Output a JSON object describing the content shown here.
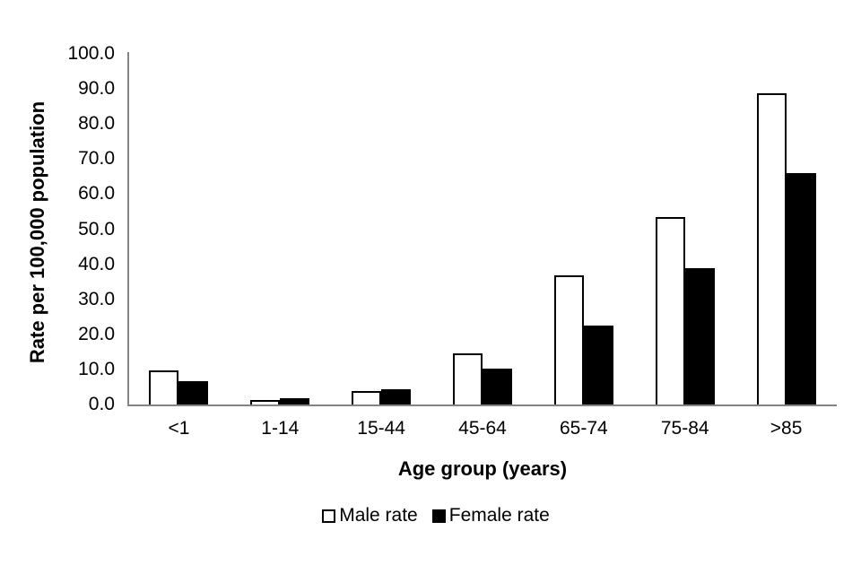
{
  "chart_data": {
    "type": "bar",
    "categories": [
      "<1",
      "1-14",
      "15-44",
      "45-64",
      "65-74",
      "75-84",
      ">85"
    ],
    "series": [
      {
        "name": "Male rate",
        "values": [
          9.8,
          1.4,
          3.9,
          14.7,
          36.9,
          53.4,
          88.7
        ],
        "fill": "#ffffff",
        "stroke": "#000000"
      },
      {
        "name": "Female rate",
        "values": [
          6.6,
          1.7,
          4.4,
          10.3,
          22.4,
          38.9,
          66.0
        ],
        "fill": "#000000",
        "stroke": "#000000"
      }
    ],
    "xlabel": "Age group (years)",
    "ylabel": "Rate per 100,000 population",
    "ylim": [
      0,
      100
    ],
    "ytick_step": 10,
    "ytick_decimals": 1,
    "grid": false,
    "legend_position": "bottom",
    "axis_color": "#848484",
    "text_color": "#000000",
    "background": "#ffffff"
  }
}
